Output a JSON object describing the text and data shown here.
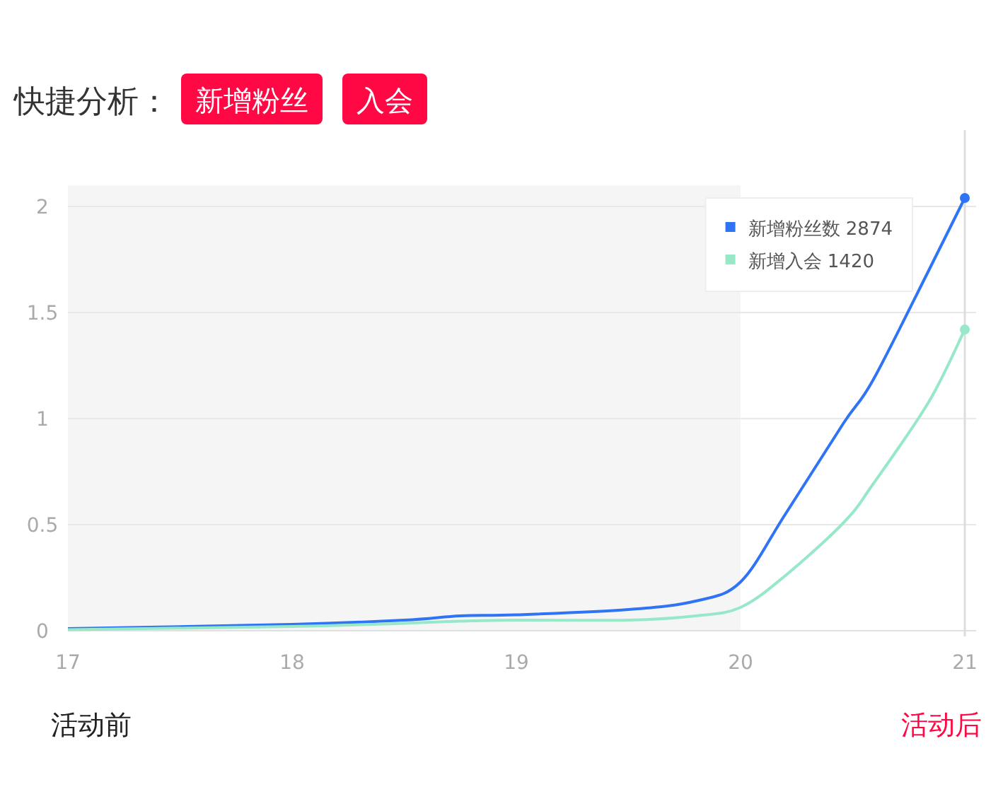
{
  "chart_data": {
    "type": "line",
    "title": "快捷分析：",
    "annotations": [
      "新增粉丝",
      "入会",
      "活动前",
      "活动后"
    ],
    "x": [
      17,
      18,
      18.5,
      18.75,
      19,
      19.5,
      19.8,
      20,
      20.2,
      20.46,
      20.59,
      20.84,
      21
    ],
    "series": [
      {
        "name": "新增粉丝数 2874",
        "color": "#2f74f5",
        "values": [
          0.01,
          0.03,
          0.05,
          0.07,
          0.075,
          0.1,
          0.14,
          0.23,
          0.55,
          0.98,
          1.18,
          1.7,
          2.04
        ]
      },
      {
        "name": "新增入会 1420",
        "color": "#96e8c8",
        "values": [
          0.005,
          0.02,
          0.035,
          0.045,
          0.05,
          0.05,
          0.07,
          0.11,
          0.26,
          0.51,
          0.69,
          1.08,
          1.42
        ]
      }
    ],
    "xlim": [
      17,
      21
    ],
    "xticks": [
      17,
      18,
      19,
      20,
      21
    ],
    "ylim": [
      0,
      2.1
    ],
    "yticks": [
      0,
      0.5,
      1,
      1.5,
      2
    ],
    "grid": "y",
    "legend": "top right",
    "bands": [
      {
        "axis": "x",
        "from": 17,
        "to": 20,
        "color": "#f5f5f5"
      }
    ],
    "ref_lines": [
      {
        "axis": "x",
        "value": 21,
        "color": "#dddddd"
      }
    ]
  }
}
